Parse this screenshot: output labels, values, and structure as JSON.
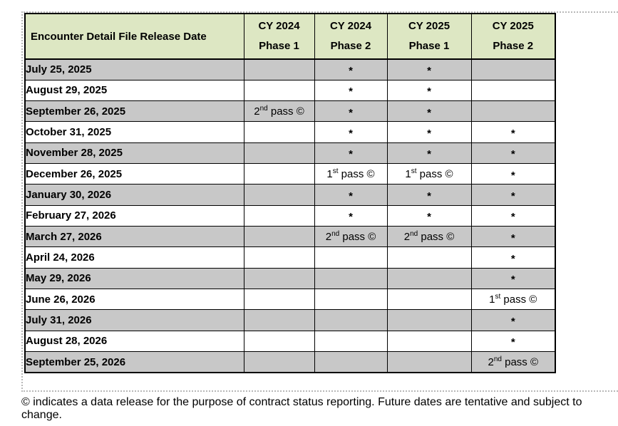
{
  "table": {
    "header": {
      "date_column_label": "Encounter Detail File Release Date",
      "columns": [
        {
          "year": "CY 2024",
          "phase": "Phase 1"
        },
        {
          "year": "CY 2024",
          "phase": "Phase 2"
        },
        {
          "year": "CY 2025",
          "phase": "Phase 1"
        },
        {
          "year": "CY 2025",
          "phase": "Phase 2"
        }
      ]
    },
    "rows": [
      {
        "date": "July 25, 2025",
        "cells": [
          "",
          "*",
          "*",
          ""
        ]
      },
      {
        "date": "August 29, 2025",
        "cells": [
          "",
          "*",
          "*",
          ""
        ]
      },
      {
        "date": "September 26, 2025",
        "cells": [
          "2nd pass ©",
          "*",
          "*",
          ""
        ]
      },
      {
        "date": "October 31, 2025",
        "cells": [
          "",
          "*",
          "*",
          "*"
        ]
      },
      {
        "date": "November 28, 2025",
        "cells": [
          "",
          "*",
          "*",
          "*"
        ]
      },
      {
        "date": "December 26, 2025",
        "cells": [
          "",
          "1st pass ©",
          "1st pass ©",
          "*"
        ]
      },
      {
        "date": "January 30, 2026",
        "cells": [
          "",
          "*",
          "*",
          "*"
        ]
      },
      {
        "date": "February 27, 2026",
        "cells": [
          "",
          "*",
          "*",
          "*"
        ]
      },
      {
        "date": "March 27, 2026",
        "cells": [
          "",
          "2nd pass ©",
          "2nd pass ©",
          "*"
        ]
      },
      {
        "date": "April 24, 2026",
        "cells": [
          "",
          "",
          "",
          "*"
        ]
      },
      {
        "date": "May 29, 2026",
        "cells": [
          "",
          "",
          "",
          "*"
        ]
      },
      {
        "date": "June 26, 2026",
        "cells": [
          "",
          "",
          "",
          "1st pass ©"
        ]
      },
      {
        "date": "July 31, 2026",
        "cells": [
          "",
          "",
          "",
          "*"
        ]
      },
      {
        "date": "August 28, 2026",
        "cells": [
          "",
          "",
          "",
          "*"
        ]
      },
      {
        "date": "September 25, 2026",
        "cells": [
          "",
          "",
          "",
          "2nd pass ©"
        ]
      }
    ]
  },
  "footnote": "© indicates a data release for the purpose of contract status reporting. Future dates are tentative and subject to change.",
  "colors": {
    "header_bg": "#dde7c3",
    "shaded_row_bg": "#c8c8c8",
    "border": "#000000",
    "dotted_boundary": "#b8b8b8"
  }
}
